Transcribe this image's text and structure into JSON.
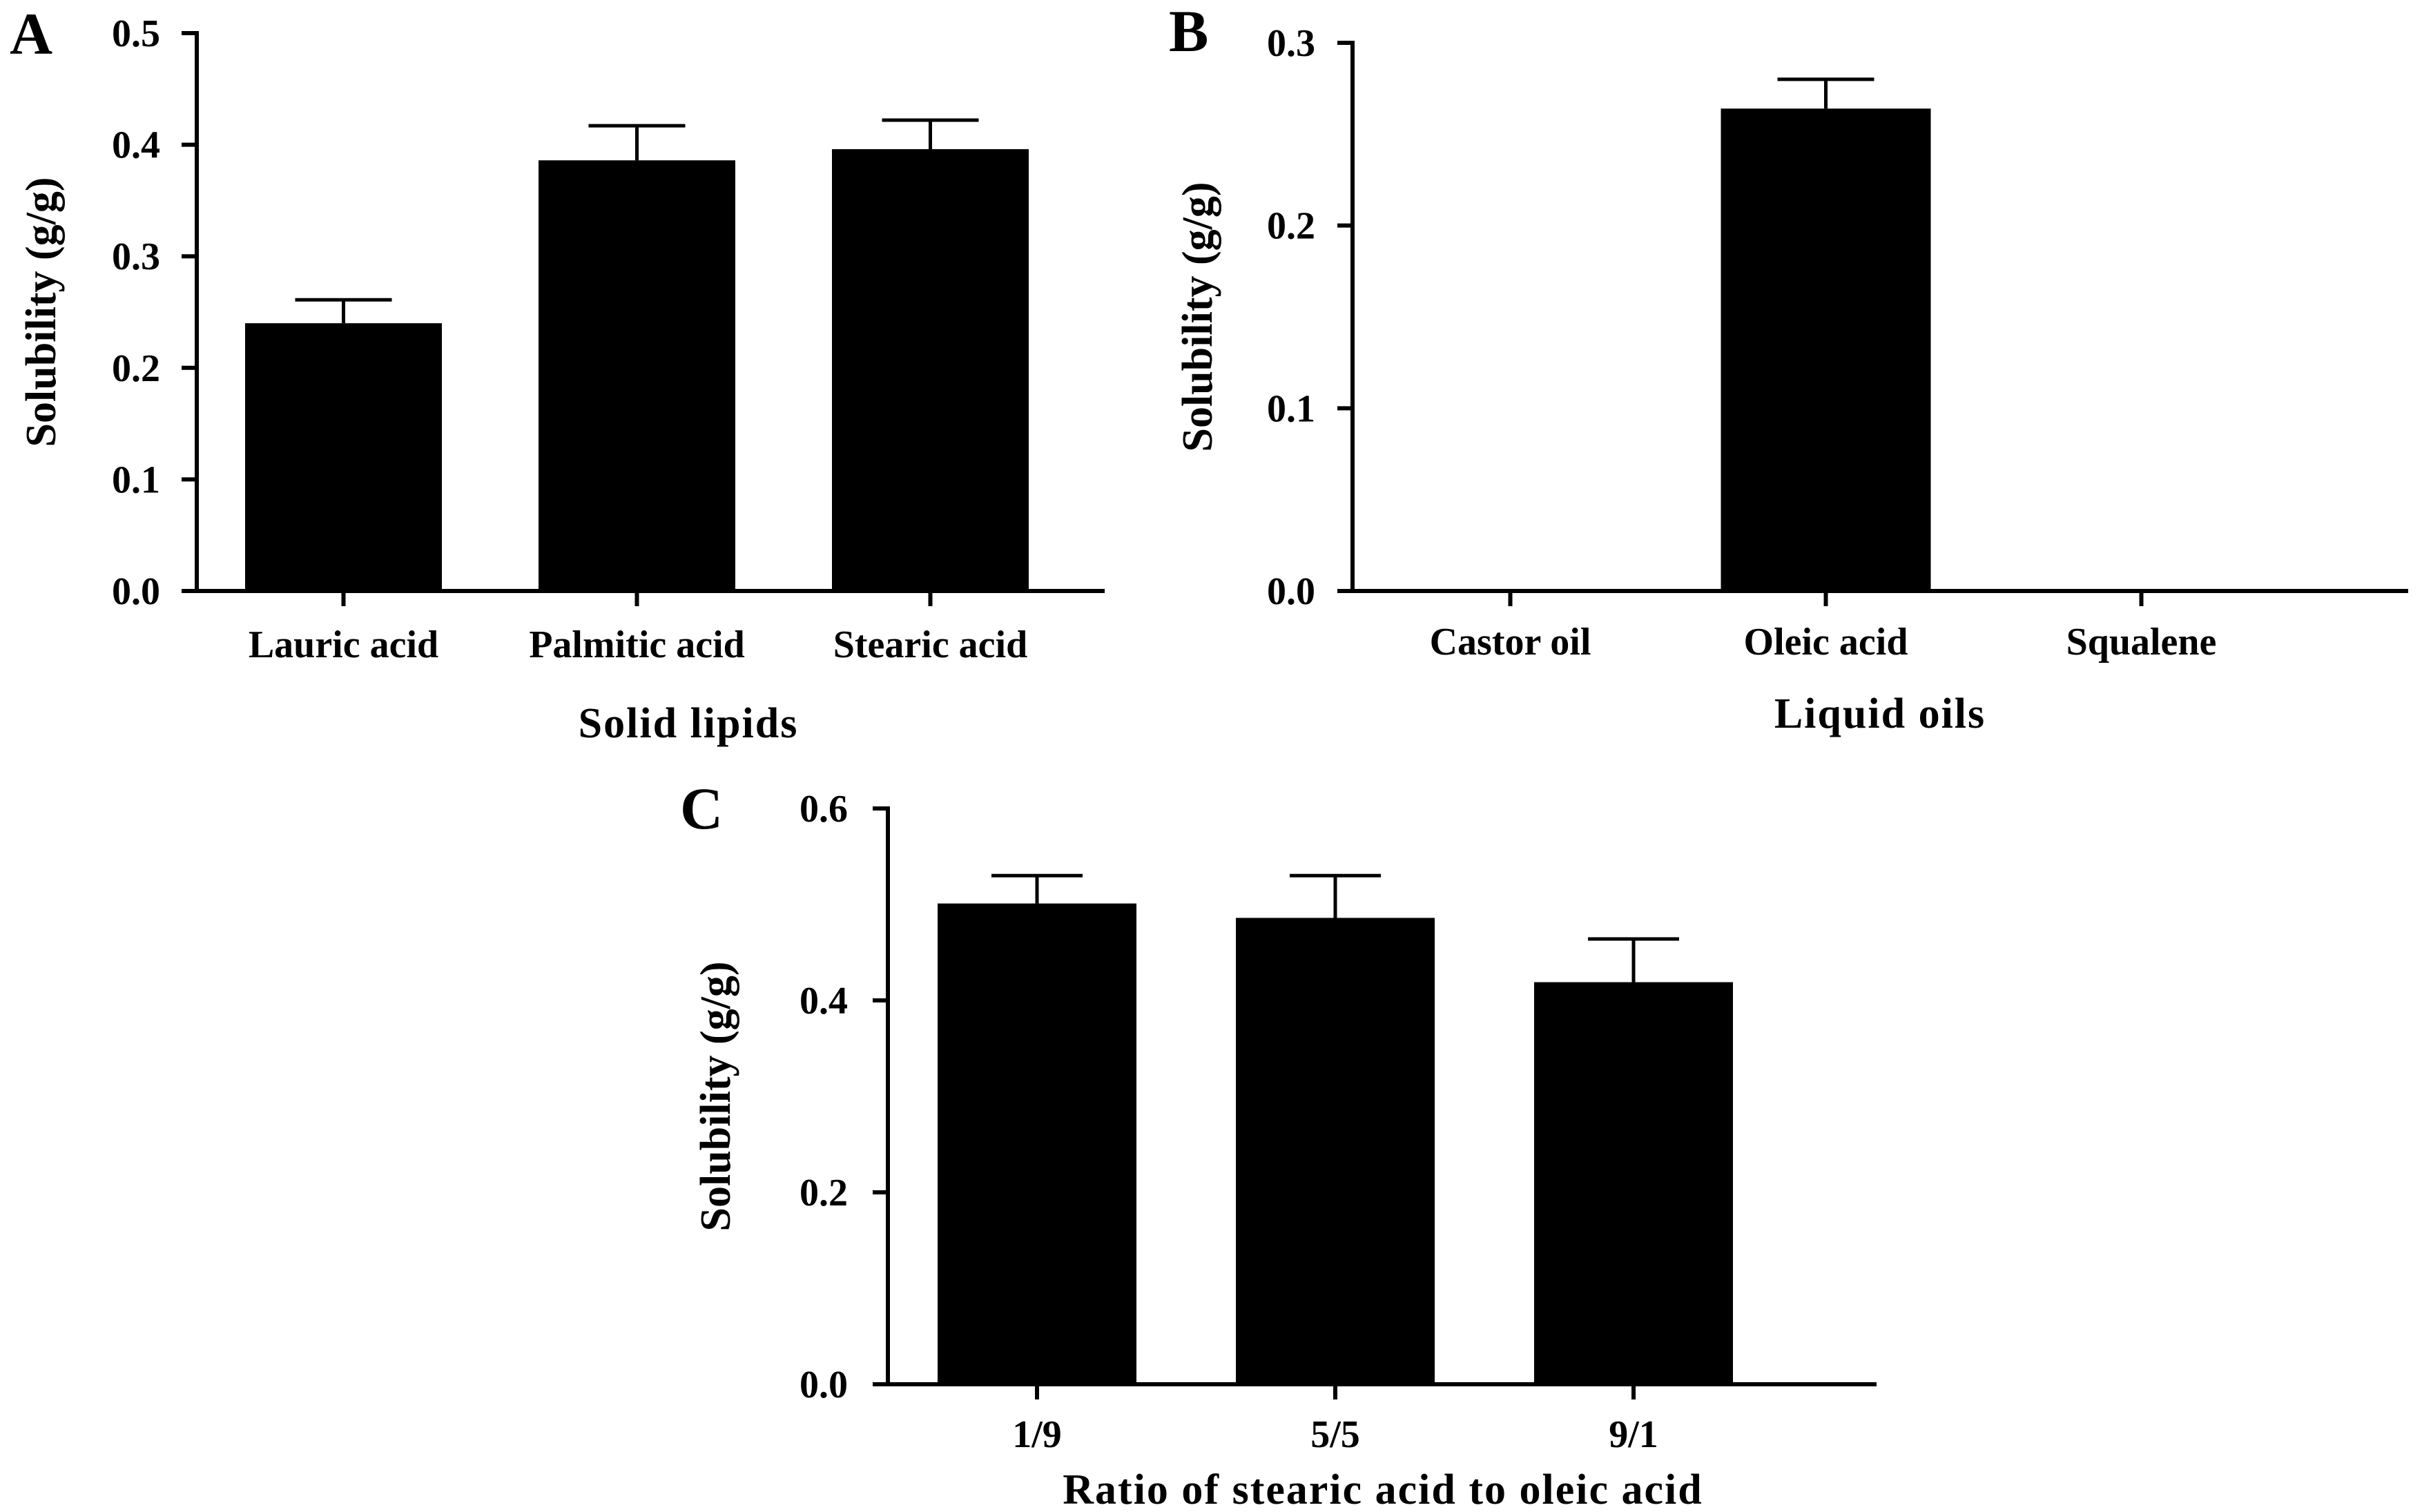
{
  "colors": {
    "bar": "#000000",
    "axis": "#000000",
    "background": "#ffffff"
  },
  "chart_data": [
    {
      "panel": "A",
      "type": "bar",
      "categories": [
        "Lauric acid",
        "Palmitic acid",
        "Stearic acid"
      ],
      "values": [
        0.24,
        0.386,
        0.396
      ],
      "errors": [
        0.021,
        0.031,
        0.026
      ],
      "xlabel": "Solid lipids",
      "ylabel": "Solubility (g/g)",
      "ylim": [
        0,
        0.5
      ],
      "yticks": [
        "0.0",
        "0.1",
        "0.2",
        "0.3",
        "0.4",
        "0.5"
      ],
      "grid": false,
      "legend": "none"
    },
    {
      "panel": "B",
      "type": "bar",
      "categories": [
        "Castor oil",
        "Oleic acid",
        "Squalene"
      ],
      "values": [
        0,
        0.264,
        0
      ],
      "errors": [
        0,
        0.016,
        0
      ],
      "xlabel": "Liquid oils",
      "ylabel": "Solubility (g/g)",
      "ylim": [
        0,
        0.3
      ],
      "yticks": [
        "0.0",
        "0.1",
        "0.2",
        "0.3"
      ],
      "grid": false,
      "legend": "none"
    },
    {
      "panel": "C",
      "type": "bar",
      "categories": [
        "1/9",
        "5/5",
        "9/1"
      ],
      "values": [
        0.501,
        0.486,
        0.419
      ],
      "errors": [
        0.029,
        0.044,
        0.045
      ],
      "xlabel": "Ratio of stearic acid to oleic acid",
      "ylabel": "Solubility (g/g)",
      "ylim": [
        0,
        0.6
      ],
      "yticks": [
        "0.0",
        "0.2",
        "0.4",
        "0.6"
      ],
      "grid": false,
      "legend": "none"
    }
  ]
}
